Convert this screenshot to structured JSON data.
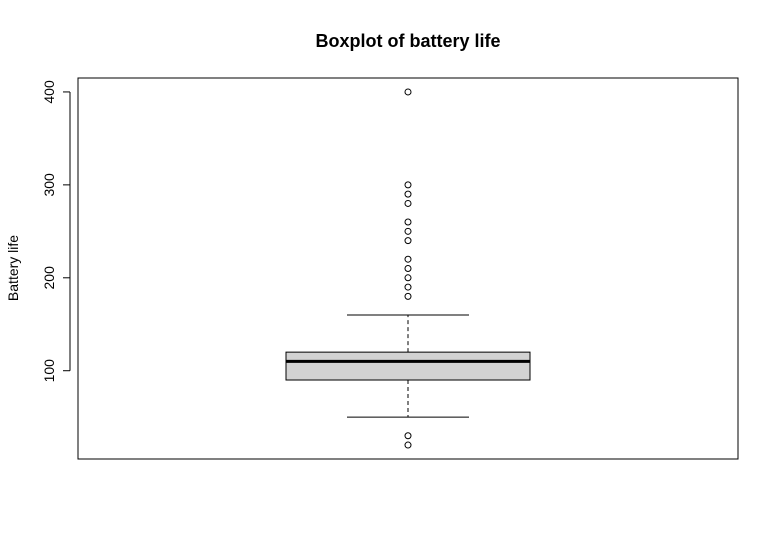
{
  "chart_data": {
    "type": "boxplot",
    "title": "Boxplot of battery life",
    "xlabel": "",
    "ylabel": "Battery life",
    "ylim": [
      5,
      415
    ],
    "yticks": [
      100,
      200,
      300,
      400
    ],
    "ytick_labels": [
      "100",
      "200",
      "300",
      "400"
    ],
    "grid": false,
    "box": {
      "whisker_low": 50,
      "q1": 90,
      "median": 110,
      "q3": 120,
      "whisker_high": 160,
      "fill": "#d3d3d3"
    },
    "outliers": [
      20,
      30,
      180,
      190,
      200,
      210,
      220,
      240,
      250,
      260,
      280,
      290,
      300,
      400
    ]
  }
}
